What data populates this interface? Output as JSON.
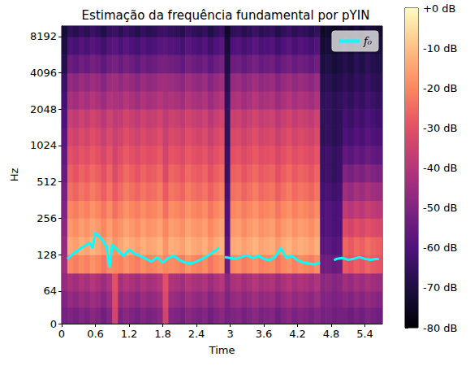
{
  "chart_data": {
    "type": "heatmap",
    "title": "Estimação da frequência fundamental por pYIN",
    "x_label": "Time",
    "y_label": "Hz",
    "log": "y",
    "xlim": [
      0,
      5.71
    ],
    "xticks": [
      0,
      0.6,
      1.2,
      1.8,
      2.4,
      3,
      3.6,
      4.2,
      4.8,
      5.4
    ],
    "ylim": [
      0,
      10000
    ],
    "yticks": [
      0,
      64,
      128,
      256,
      512,
      1024,
      2048,
      4096,
      8192
    ],
    "legend": "upper right",
    "heatmap": {
      "x_edges": [
        0,
        0.1,
        0.2,
        0.3,
        0.4,
        0.5,
        0.6,
        0.7,
        0.8,
        0.9,
        1.0,
        1.1,
        1.2,
        1.3,
        1.4,
        1.5,
        1.6,
        1.7,
        1.8,
        1.9,
        2.0,
        2.1,
        2.2,
        2.3,
        2.4,
        2.5,
        2.6,
        2.7,
        2.8,
        2.9,
        3.0,
        3.1,
        3.2,
        3.3,
        3.4,
        3.5,
        3.6,
        3.7,
        3.8,
        3.9,
        4.0,
        4.1,
        4.2,
        4.3,
        4.4,
        4.5,
        4.6,
        4.7,
        4.8,
        4.9,
        5.0,
        5.1,
        5.2,
        5.3,
        5.4,
        5.5,
        5.6,
        5.71
      ],
      "y_edges": [
        0,
        32,
        64,
        90,
        128,
        180,
        256,
        360,
        512,
        720,
        1024,
        1450,
        2048,
        2900,
        4096,
        5800,
        8192,
        10000
      ],
      "values": [
        [
          -52,
          -50,
          -52,
          -49,
          -51,
          -48,
          -50,
          -53,
          -49,
          -34,
          -51,
          -48,
          -50,
          -52,
          -49,
          -51,
          -50,
          -48,
          -34,
          -49,
          -50,
          -52,
          -48,
          -50,
          -51,
          -49,
          -53,
          -50,
          -48,
          -52,
          -50,
          -49,
          -52,
          -50,
          -48,
          -51,
          -50,
          -49,
          -53,
          -50,
          -48,
          -51,
          -49,
          -50,
          -52,
          -49,
          -52,
          -51,
          -53,
          -52,
          -52,
          -54,
          -51,
          -53,
          -50,
          -52,
          -53
        ],
        [
          -50,
          -46,
          -48,
          -45,
          -47,
          -44,
          -46,
          -49,
          -45,
          -32,
          -47,
          -44,
          -46,
          -48,
          -45,
          -47,
          -46,
          -44,
          -32,
          -45,
          -46,
          -48,
          -44,
          -46,
          -47,
          -45,
          -49,
          -46,
          -44,
          -50,
          -46,
          -45,
          -48,
          -46,
          -44,
          -47,
          -46,
          -45,
          -49,
          -46,
          -44,
          -47,
          -45,
          -46,
          -48,
          -45,
          -50,
          -49,
          -51,
          -50,
          -48,
          -50,
          -47,
          -49,
          -46,
          -48,
          -49
        ],
        [
          -46,
          -42,
          -44,
          -41,
          -43,
          -40,
          -42,
          -45,
          -41,
          -30,
          -43,
          -40,
          -42,
          -44,
          -41,
          -43,
          -42,
          -40,
          -30,
          -41,
          -42,
          -44,
          -40,
          -42,
          -43,
          -41,
          -45,
          -42,
          -40,
          -48,
          -42,
          -41,
          -44,
          -42,
          -40,
          -43,
          -42,
          -41,
          -45,
          -42,
          -40,
          -43,
          -41,
          -42,
          -44,
          -41,
          -48,
          -47,
          -49,
          -48,
          -44,
          -46,
          -43,
          -45,
          -42,
          -44,
          -45
        ],
        [
          -44,
          -20,
          -22,
          -19,
          -21,
          -18,
          -20,
          -23,
          -19,
          -20,
          -21,
          -18,
          -20,
          -22,
          -19,
          -21,
          -20,
          -18,
          -20,
          -19,
          -20,
          -22,
          -18,
          -20,
          -21,
          -19,
          -23,
          -20,
          -18,
          -54,
          -20,
          -19,
          -22,
          -20,
          -18,
          -21,
          -20,
          -19,
          -23,
          -20,
          -18,
          -21,
          -19,
          -20,
          -22,
          -19,
          -54,
          -53,
          -55,
          -54,
          -28,
          -30,
          -27,
          -29,
          -26,
          -28,
          -29
        ],
        [
          -46,
          -14,
          -16,
          -13,
          -15,
          -12,
          -14,
          -17,
          -13,
          -18,
          -15,
          -12,
          -14,
          -16,
          -13,
          -15,
          -14,
          -12,
          -18,
          -13,
          -14,
          -16,
          -12,
          -14,
          -15,
          -13,
          -17,
          -14,
          -12,
          -58,
          -14,
          -13,
          -16,
          -14,
          -12,
          -15,
          -14,
          -13,
          -17,
          -14,
          -12,
          -15,
          -13,
          -14,
          -16,
          -13,
          -58,
          -57,
          -59,
          -58,
          -26,
          -28,
          -25,
          -27,
          -24,
          -26,
          -27
        ],
        [
          -48,
          -17,
          -19,
          -16,
          -18,
          -15,
          -17,
          -20,
          -16,
          -20,
          -18,
          -15,
          -17,
          -19,
          -16,
          -18,
          -17,
          -15,
          -20,
          -16,
          -17,
          -19,
          -15,
          -17,
          -18,
          -16,
          -20,
          -17,
          -15,
          -60,
          -17,
          -16,
          -19,
          -17,
          -15,
          -18,
          -17,
          -16,
          -20,
          -17,
          -15,
          -18,
          -16,
          -17,
          -19,
          -16,
          -60,
          -59,
          -61,
          -60,
          -32,
          -34,
          -31,
          -33,
          -30,
          -32,
          -33
        ],
        [
          -50,
          -20,
          -22,
          -19,
          -21,
          -18,
          -20,
          -23,
          -19,
          -24,
          -21,
          -18,
          -20,
          -22,
          -19,
          -21,
          -20,
          -18,
          -24,
          -19,
          -20,
          -22,
          -18,
          -20,
          -21,
          -19,
          -23,
          -20,
          -18,
          -60,
          -20,
          -19,
          -22,
          -20,
          -18,
          -21,
          -20,
          -19,
          -23,
          -20,
          -18,
          -21,
          -19,
          -20,
          -22,
          -19,
          -60,
          -59,
          -61,
          -60,
          -38,
          -40,
          -37,
          -39,
          -36,
          -38,
          -39
        ],
        [
          -52,
          -24,
          -26,
          -23,
          -25,
          -22,
          -24,
          -27,
          -23,
          -28,
          -25,
          -22,
          -24,
          -26,
          -23,
          -25,
          -24,
          -22,
          -28,
          -23,
          -24,
          -26,
          -22,
          -24,
          -25,
          -23,
          -27,
          -24,
          -22,
          -62,
          -24,
          -23,
          -26,
          -24,
          -22,
          -25,
          -24,
          -23,
          -27,
          -24,
          -22,
          -25,
          -23,
          -24,
          -26,
          -23,
          -62,
          -61,
          -63,
          -62,
          -44,
          -46,
          -43,
          -45,
          -42,
          -44,
          -45
        ],
        [
          -55,
          -27,
          -29,
          -26,
          -28,
          -25,
          -27,
          -30,
          -26,
          -32,
          -28,
          -25,
          -27,
          -29,
          -26,
          -28,
          -27,
          -25,
          -32,
          -26,
          -27,
          -29,
          -25,
          -27,
          -28,
          -26,
          -30,
          -27,
          -25,
          -64,
          -27,
          -26,
          -29,
          -27,
          -25,
          -28,
          -27,
          -26,
          -30,
          -27,
          -25,
          -28,
          -26,
          -27,
          -29,
          -26,
          -64,
          -63,
          -65,
          -64,
          -50,
          -52,
          -49,
          -51,
          -48,
          -50,
          -51
        ],
        [
          -56,
          -30,
          -32,
          -29,
          -31,
          -28,
          -30,
          -33,
          -29,
          -34,
          -31,
          -28,
          -30,
          -32,
          -29,
          -31,
          -30,
          -28,
          -34,
          -29,
          -30,
          -32,
          -28,
          -30,
          -31,
          -29,
          -33,
          -30,
          -28,
          -64,
          -30,
          -29,
          -32,
          -30,
          -28,
          -31,
          -30,
          -29,
          -33,
          -30,
          -28,
          -31,
          -29,
          -30,
          -32,
          -29,
          -64,
          -63,
          -65,
          -64,
          -56,
          -58,
          -55,
          -57,
          -54,
          -56,
          -57
        ],
        [
          -58,
          -33,
          -35,
          -32,
          -34,
          -31,
          -33,
          -36,
          -32,
          -36,
          -34,
          -31,
          -33,
          -35,
          -32,
          -34,
          -33,
          -31,
          -36,
          -32,
          -33,
          -35,
          -31,
          -33,
          -34,
          -32,
          -36,
          -33,
          -31,
          -66,
          -33,
          -32,
          -35,
          -33,
          -31,
          -34,
          -33,
          -32,
          -36,
          -33,
          -31,
          -34,
          -32,
          -33,
          -35,
          -32,
          -66,
          -65,
          -67,
          -66,
          -60,
          -62,
          -59,
          -61,
          -58,
          -60,
          -61
        ],
        [
          -60,
          -36,
          -38,
          -35,
          -37,
          -34,
          -36,
          -39,
          -35,
          -38,
          -37,
          -34,
          -36,
          -38,
          -35,
          -37,
          -36,
          -34,
          -38,
          -35,
          -36,
          -38,
          -34,
          -36,
          -37,
          -35,
          -39,
          -36,
          -34,
          -66,
          -36,
          -35,
          -38,
          -36,
          -34,
          -37,
          -36,
          -35,
          -39,
          -36,
          -34,
          -37,
          -35,
          -36,
          -38,
          -35,
          -66,
          -65,
          -67,
          -66,
          -62,
          -64,
          -61,
          -63,
          -60,
          -62,
          -63
        ],
        [
          -62,
          -42,
          -44,
          -41,
          -43,
          -40,
          -42,
          -45,
          -41,
          -42,
          -43,
          -40,
          -42,
          -44,
          -41,
          -43,
          -42,
          -40,
          -42,
          -41,
          -42,
          -44,
          -40,
          -42,
          -43,
          -41,
          -45,
          -42,
          -40,
          -66,
          -42,
          -41,
          -44,
          -42,
          -40,
          -43,
          -42,
          -41,
          -45,
          -42,
          -40,
          -43,
          -41,
          -42,
          -44,
          -41,
          -66,
          -65,
          -67,
          -66,
          -64,
          -66,
          -63,
          -65,
          -62,
          -64,
          -65
        ],
        [
          -64,
          -46,
          -48,
          -45,
          -47,
          -44,
          -46,
          -49,
          -45,
          -44,
          -47,
          -44,
          -46,
          -48,
          -45,
          -47,
          -46,
          -44,
          -44,
          -45,
          -46,
          -48,
          -44,
          -46,
          -47,
          -45,
          -49,
          -46,
          -44,
          -68,
          -46,
          -45,
          -48,
          -46,
          -44,
          -47,
          -46,
          -45,
          -49,
          -46,
          -44,
          -47,
          -45,
          -46,
          -48,
          -45,
          -68,
          -67,
          -69,
          -68,
          -66,
          -68,
          -65,
          -67,
          -64,
          -66,
          -67
        ],
        [
          -68,
          -54,
          -56,
          -53,
          -55,
          -52,
          -54,
          -57,
          -53,
          -52,
          -55,
          -52,
          -54,
          -56,
          -53,
          -55,
          -54,
          -52,
          -52,
          -53,
          -54,
          -56,
          -52,
          -54,
          -55,
          -53,
          -57,
          -54,
          -52,
          -70,
          -54,
          -53,
          -56,
          -54,
          -52,
          -55,
          -54,
          -53,
          -57,
          -54,
          -52,
          -55,
          -53,
          -54,
          -56,
          -53,
          -70,
          -69,
          -71,
          -70,
          -68,
          -70,
          -67,
          -69,
          -66,
          -68,
          -69
        ],
        [
          -70,
          -60,
          -62,
          -59,
          -61,
          -58,
          -60,
          -63,
          -59,
          -58,
          -61,
          -58,
          -60,
          -62,
          -59,
          -61,
          -60,
          -58,
          -58,
          -59,
          -60,
          -62,
          -58,
          -60,
          -61,
          -59,
          -63,
          -60,
          -58,
          -72,
          -60,
          -59,
          -62,
          -60,
          -58,
          -61,
          -60,
          -59,
          -63,
          -60,
          -58,
          -61,
          -59,
          -60,
          -62,
          -59,
          -72,
          -71,
          -73,
          -72,
          -70,
          -72,
          -69,
          -71,
          -68,
          -70,
          -71
        ],
        [
          -72,
          -66,
          -68,
          -65,
          -67,
          -64,
          -66,
          -69,
          -65,
          -64,
          -67,
          -64,
          -66,
          -68,
          -65,
          -67,
          -66,
          -64,
          -64,
          -65,
          -66,
          -68,
          -64,
          -66,
          -67,
          -65,
          -69,
          -66,
          -64,
          -74,
          -66,
          -65,
          -68,
          -66,
          -64,
          -67,
          -66,
          -65,
          -69,
          -66,
          -64,
          -67,
          -65,
          -66,
          -68,
          -65,
          -74,
          -73,
          -75,
          -74,
          -72,
          -74,
          -71,
          -73,
          -70,
          -72,
          -73
        ]
      ]
    },
    "colorbar": {
      "lim": [
        -80,
        0
      ],
      "ticks": [
        {
          "value": 0,
          "label": "+0 dB"
        },
        {
          "value": -10,
          "label": "-10 dB"
        },
        {
          "value": -20,
          "label": "-20 dB"
        },
        {
          "value": -30,
          "label": "-30 dB"
        },
        {
          "value": -40,
          "label": "-40 dB"
        },
        {
          "value": -50,
          "label": "-50 dB"
        },
        {
          "value": -60,
          "label": "-60 dB"
        },
        {
          "value": -70,
          "label": "-70 dB"
        },
        {
          "value": -80,
          "label": "-80 dB"
        }
      ]
    },
    "series": [
      {
        "name": "f₀",
        "type": "line",
        "color": "#00ffff",
        "x": [
          0.1,
          0.2,
          0.3,
          0.4,
          0.5,
          0.55,
          0.6,
          0.7,
          0.8,
          0.85,
          0.9,
          1.0,
          1.1,
          1.2,
          1.3,
          1.4,
          1.5,
          1.6,
          1.7,
          1.8,
          1.9,
          2.0,
          2.1,
          2.2,
          2.3,
          2.4,
          2.5,
          2.6,
          2.7,
          2.8,
          2.85,
          2.9,
          3.0,
          3.1,
          3.2,
          3.3,
          3.4,
          3.5,
          3.6,
          3.7,
          3.8,
          3.9,
          4.0,
          4.1,
          4.2,
          4.3,
          4.4,
          4.5,
          4.6,
          4.7,
          4.85,
          4.9,
          5.0,
          5.1,
          5.2,
          5.3,
          5.4,
          5.5,
          5.6,
          5.65
        ],
        "values": [
          118,
          130,
          140,
          150,
          160,
          145,
          195,
          175,
          150,
          100,
          155,
          140,
          125,
          140,
          130,
          125,
          118,
          112,
          122,
          110,
          120,
          125,
          115,
          110,
          108,
          112,
          118,
          125,
          135,
          145,
          null,
          122,
          120,
          118,
          122,
          126,
          120,
          125,
          118,
          115,
          122,
          145,
          120,
          125,
          115,
          110,
          108,
          106,
          110,
          null,
          115,
          118,
          120,
          116,
          118,
          122,
          118,
          116,
          118,
          117
        ]
      }
    ]
  }
}
